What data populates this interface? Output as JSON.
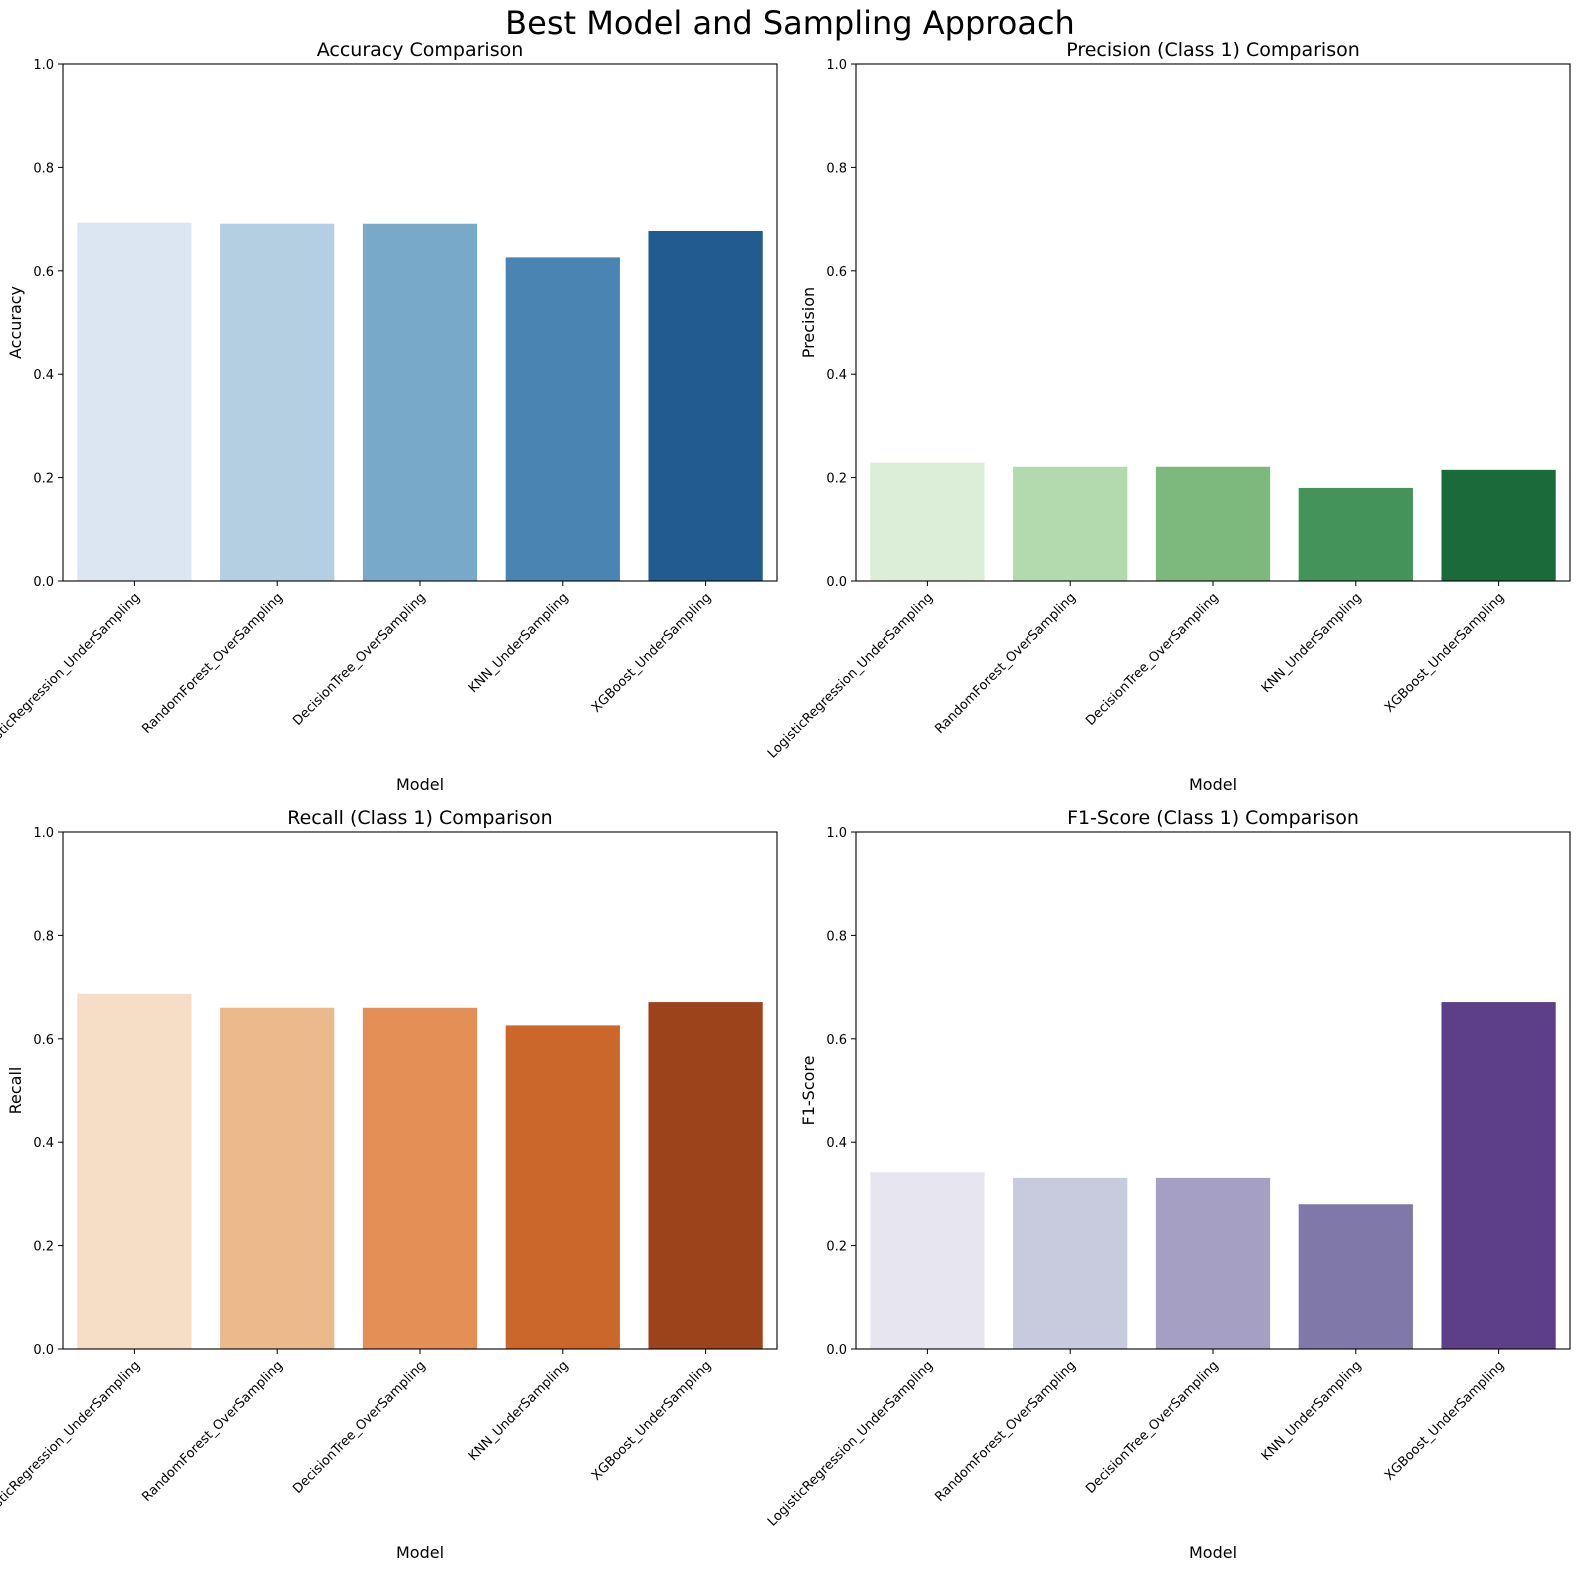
{
  "figure": {
    "title": "Best Model and Sampling Approach"
  },
  "chart_data": [
    {
      "type": "bar",
      "title": "Accuracy Comparison",
      "xlabel": "Model",
      "ylabel": "Accuracy",
      "ylim": [
        0,
        1.0
      ],
      "yticks": [
        "0.0",
        "0.2",
        "0.4",
        "0.6",
        "0.8",
        "1.0"
      ],
      "categories": [
        "LogisticRegression_UnderSampling",
        "RandomForest_OverSampling",
        "DecisionTree_OverSampling",
        "KNN_UnderSampling",
        "XGBoost_UnderSampling"
      ],
      "values": [
        0.693,
        0.691,
        0.691,
        0.626,
        0.677
      ],
      "colors": [
        "#dbe6f2",
        "#b3cfe1",
        "#78a9c9",
        "#4984b3",
        "#225b8f"
      ],
      "grid": false
    },
    {
      "type": "bar",
      "title": "Precision (Class 1) Comparison",
      "xlabel": "Model",
      "ylabel": "Precision",
      "ylim": [
        0,
        1.0
      ],
      "yticks": [
        "0.0",
        "0.2",
        "0.4",
        "0.6",
        "0.8",
        "1.0"
      ],
      "categories": [
        "LogisticRegression_UnderSampling",
        "RandomForest_OverSampling",
        "DecisionTree_OverSampling",
        "KNN_UnderSampling",
        "XGBoost_UnderSampling"
      ],
      "values": [
        0.229,
        0.221,
        0.221,
        0.18,
        0.215
      ],
      "colors": [
        "#dcedd8",
        "#b3d9ae",
        "#7db97d",
        "#44935b",
        "#1a6b39"
      ],
      "grid": false
    },
    {
      "type": "bar",
      "title": "Recall (Class 1) Comparison",
      "xlabel": "Model",
      "ylabel": "Recall",
      "ylim": [
        0,
        1.0
      ],
      "yticks": [
        "0.0",
        "0.2",
        "0.4",
        "0.6",
        "0.8",
        "1.0"
      ],
      "categories": [
        "LogisticRegression_UnderSampling",
        "RandomForest_OverSampling",
        "DecisionTree_OverSampling",
        "KNN_UnderSampling",
        "XGBoost_UnderSampling"
      ],
      "values": [
        0.687,
        0.66,
        0.66,
        0.626,
        0.671
      ],
      "colors": [
        "#f5ddc6",
        "#ecb98d",
        "#e38f56",
        "#cc672b",
        "#9d431b"
      ],
      "grid": false
    },
    {
      "type": "bar",
      "title": "F1-Score (Class 1) Comparison",
      "xlabel": "Model",
      "ylabel": "F1-Score",
      "ylim": [
        0,
        1.0
      ],
      "yticks": [
        "0.0",
        "0.2",
        "0.4",
        "0.6",
        "0.8",
        "1.0"
      ],
      "categories": [
        "LogisticRegression_UnderSampling",
        "RandomForest_OverSampling",
        "DecisionTree_OverSampling",
        "KNN_UnderSampling",
        "XGBoost_UnderSampling"
      ],
      "values": [
        0.342,
        0.331,
        0.331,
        0.28,
        0.671
      ],
      "colors": [
        "#e7e5f0",
        "#c8cadd",
        "#a49fc3",
        "#8078a9",
        "#5c3f88"
      ],
      "grid": false
    }
  ]
}
